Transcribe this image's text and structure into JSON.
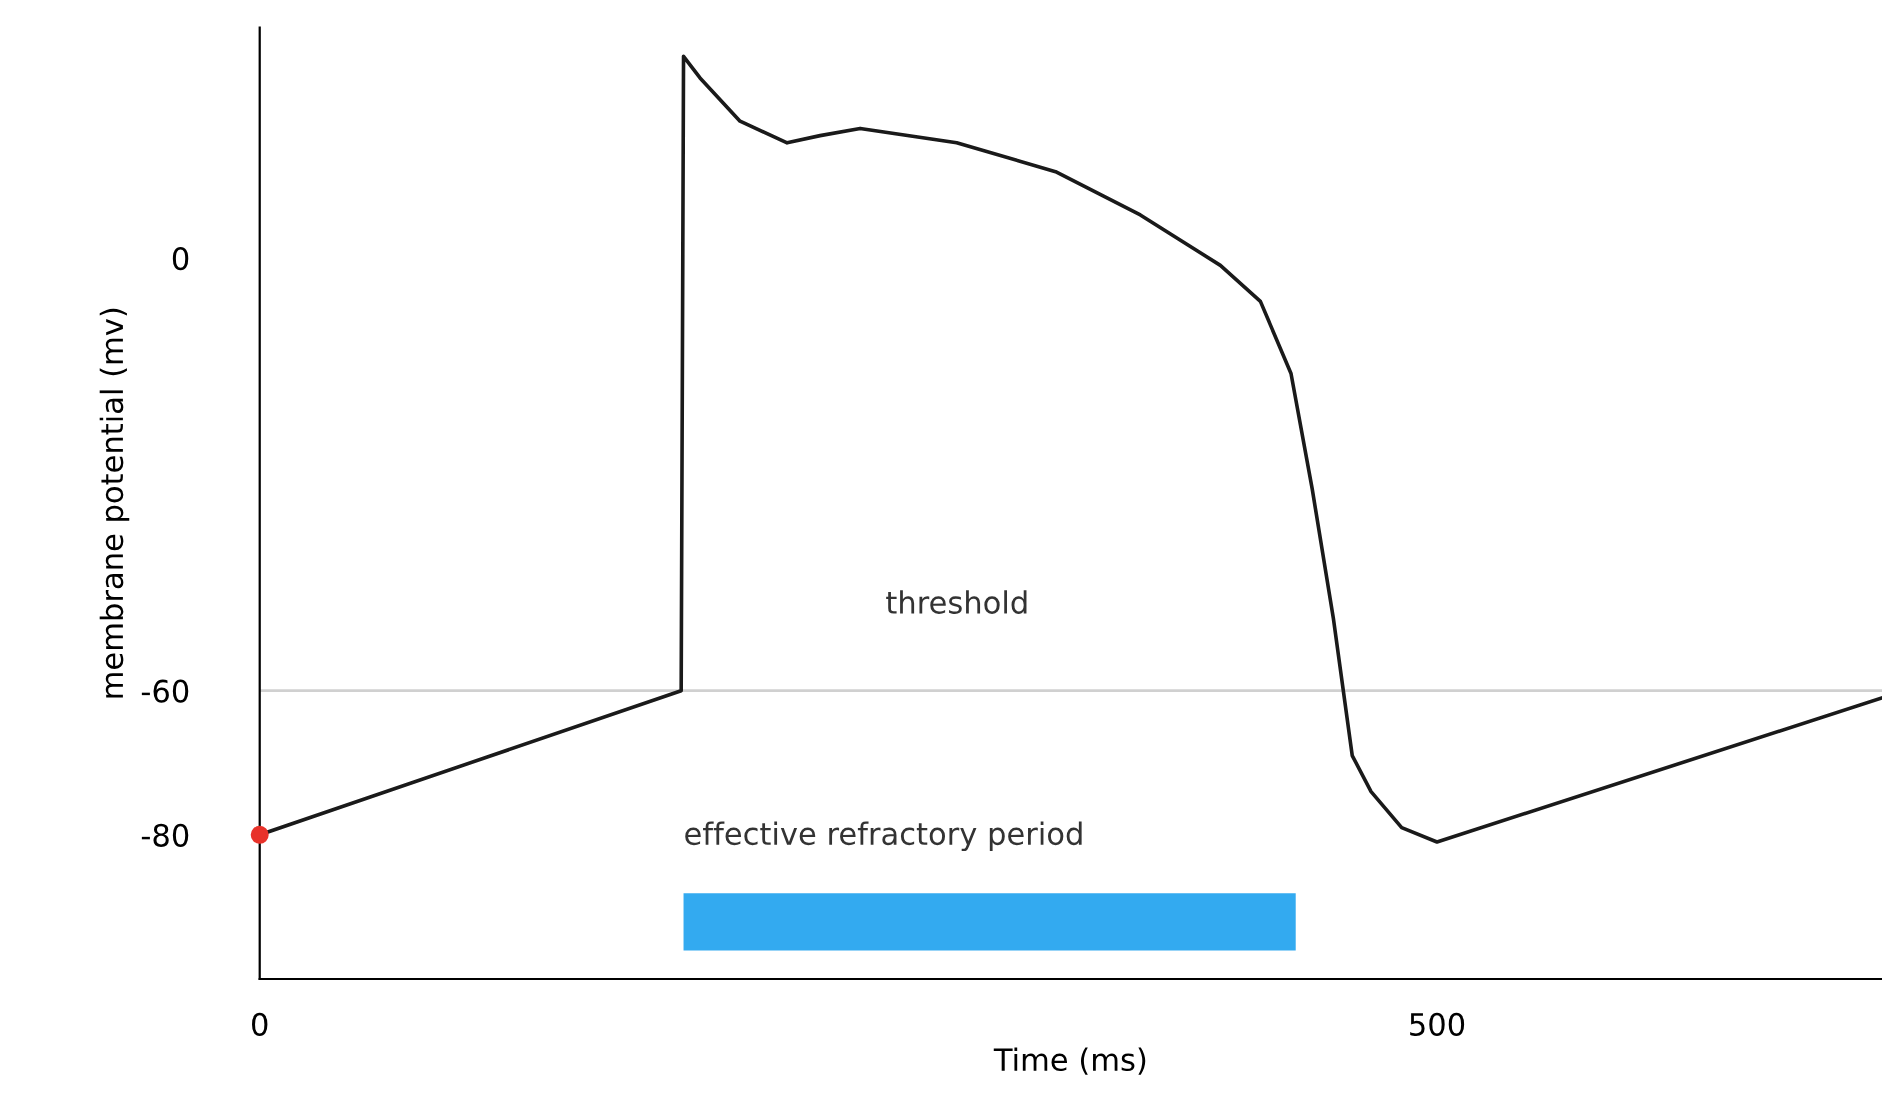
{
  "chart_data": {
    "type": "line",
    "xlabel": "Time (ms)",
    "ylabel": "membrane potential (mv)",
    "xlim": [
      0,
      689
    ],
    "ylim": [
      -100,
      32
    ],
    "xticks": [
      0,
      500
    ],
    "yticks": [
      0,
      -60,
      -80
    ],
    "grid": false,
    "legend": false,
    "series": [
      {
        "type": "line",
        "color": "#1a1a1a",
        "x": [
          0,
          179,
          180,
          187,
          204,
          224,
          238,
          255,
          296,
          338,
          374,
          408,
          425,
          438,
          447,
          456,
          464,
          472,
          485,
          500,
          689
        ],
        "values": [
          -80,
          -60,
          28,
          25,
          19,
          16,
          17,
          18,
          16,
          12,
          6,
          -1,
          -6,
          -16,
          -32,
          -50,
          -69,
          -74,
          -79,
          -81,
          -61
        ]
      },
      {
        "type": "scatter",
        "color": "#e8322a",
        "x": [
          0
        ],
        "values": [
          -80
        ]
      }
    ],
    "ref_lines": [
      {
        "axis": "y",
        "value": -60,
        "label": "threshold",
        "color": "#d0d0d0"
      }
    ],
    "bands": [
      {
        "axis": "x",
        "from": 180,
        "to": 440,
        "label": "effective refractory period",
        "color": "#33aaf0"
      }
    ]
  }
}
